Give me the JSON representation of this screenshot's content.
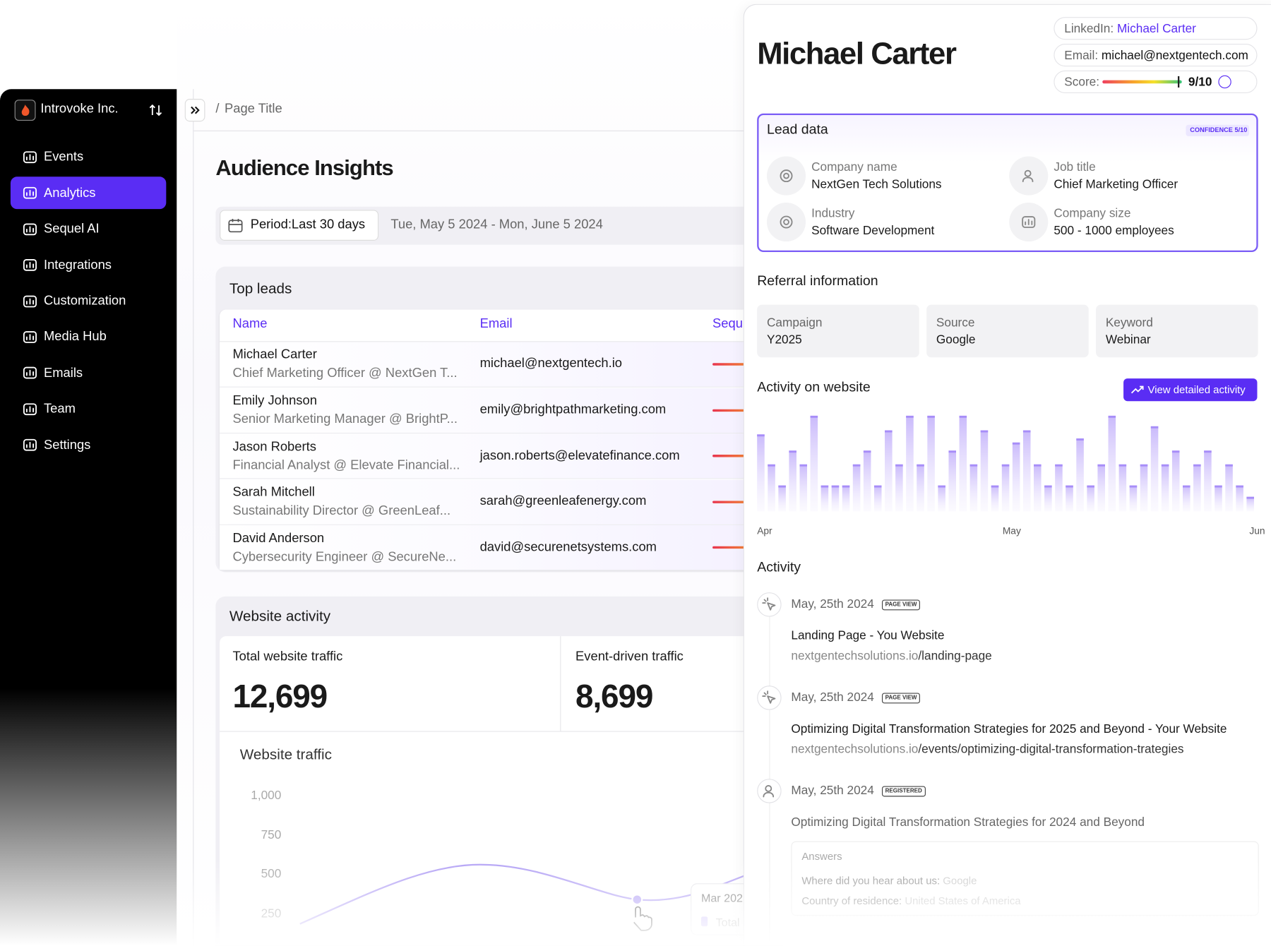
{
  "sidebar": {
    "org": "Introvoke Inc.",
    "nav": [
      "Events",
      "Analytics",
      "Sequel AI",
      "Integrations",
      "Customization",
      "Media Hub",
      "Emails",
      "Team",
      "Settings"
    ],
    "active": 1
  },
  "breadcrumb": {
    "separator": "/",
    "title": "Page Title"
  },
  "page_title": "Audience Insights",
  "period": {
    "label": "Period:",
    "value": "Last 30 days",
    "range": "Tue, May 5 2024 - Mon, June 5 2024"
  },
  "top_leads": {
    "title": "Top leads",
    "columns": [
      "Name",
      "Email",
      "Sequ"
    ],
    "rows": [
      {
        "name": "Michael Carter",
        "subtitle": "Chief Marketing Officer @ NextGen T...",
        "email": "michael@nextgentech.io"
      },
      {
        "name": "Emily Johnson",
        "subtitle": "Senior Marketing Manager @ BrightP...",
        "email": "emily@brightpathmarketing.com"
      },
      {
        "name": "Jason Roberts",
        "subtitle": "Financial Analyst @ Elevate Financial...",
        "email": "jason.roberts@elevatefinance.com"
      },
      {
        "name": "Sarah Mitchell",
        "subtitle": "Sustainability Director @ GreenLeaf...",
        "email": "sarah@greenleafenergy.com"
      },
      {
        "name": "David Anderson",
        "subtitle": "Cybersecurity Engineer @ SecureNe...",
        "email": "david@securenetsystems.com"
      }
    ]
  },
  "website_activity": {
    "title": "Website activity",
    "stats": [
      {
        "label": "Total website traffic",
        "value": "12,699"
      },
      {
        "label": "Event-driven traffic",
        "value": "8,699"
      }
    ],
    "chart_title": "Website traffic",
    "yticks": [
      "1,000",
      "750",
      "500",
      "250"
    ],
    "tooltip": {
      "title": "Mar 202",
      "label": "Total"
    }
  },
  "profile": {
    "name": "Michael Carter",
    "links": [
      {
        "label": "LinkedIn:",
        "value": "Michael Carter"
      },
      {
        "label": "Email:",
        "value": "michael@nextgentech.com"
      }
    ],
    "score": {
      "label": "Score:",
      "value": "9/10"
    },
    "lead_data": {
      "title": "Lead data",
      "confidence": "CONFIDENCE 5/10",
      "fields": [
        {
          "label": "Company name",
          "value": "NextGen Tech Solutions"
        },
        {
          "label": "Job title",
          "value": "Chief Marketing Officer"
        },
        {
          "label": "Industry",
          "value": "Software Development"
        },
        {
          "label": "Company size",
          "value": "500 - 1000 employees"
        }
      ]
    },
    "referral": {
      "title": "Referral information",
      "items": [
        {
          "label": "Campaign",
          "value": "Y2025"
        },
        {
          "label": "Source",
          "value": "Google"
        },
        {
          "label": "Keyword",
          "value": "Webinar"
        }
      ]
    },
    "website_activity": {
      "title": "Activity on website",
      "button": "View detailed activity",
      "bars": [
        95,
        58,
        32,
        75,
        58,
        118,
        32,
        32,
        32,
        58,
        75,
        32,
        100,
        58,
        118,
        58,
        118,
        32,
        75,
        118,
        58,
        100,
        32,
        58,
        85,
        100,
        58,
        32,
        58,
        32,
        90,
        32,
        58,
        118,
        58,
        32,
        58,
        105,
        58,
        75,
        32,
        58,
        75,
        32,
        58,
        32,
        18
      ],
      "x_labels": [
        "Apr",
        "May",
        "Jun"
      ]
    },
    "activity": {
      "title": "Activity",
      "items": [
        {
          "date": "May, 25th 2024",
          "tag": "PAGE VIEW",
          "title": "Landing Page - You Website",
          "url_host": "nextgentechsolutions.io",
          "url_path": "/landing-page"
        },
        {
          "date": "May, 25th 2024",
          "tag": "PAGE VIEW",
          "title": "Optimizing Digital Transformation Strategies for 2025 and Beyond - Your Website",
          "url_host": "nextgentechsolutions.io",
          "url_path": "/events/optimizing-digital-transformation-trategies"
        },
        {
          "date": "May, 25th 2024",
          "tag": "REGISTERED",
          "title": "Optimizing Digital Transformation Strategies for 2024 and Beyond",
          "answers": {
            "title": "Answers",
            "rows": [
              {
                "q": "Where did you hear about us:",
                "a": "Google"
              },
              {
                "q": "Country of residence:",
                "a": "United States of America"
              }
            ]
          }
        }
      ]
    }
  }
}
